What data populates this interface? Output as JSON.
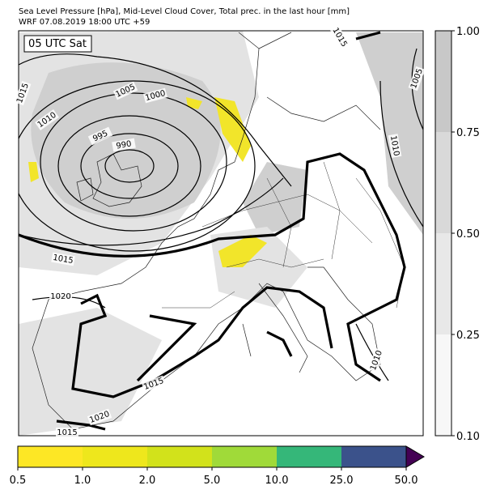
{
  "title": [
    "Sea Level Pressure [hPa], Mid-Level Cloud Cover, Total prec. in the last hour [mm]",
    "WRF 07.08.2019 18:00 UTC +59"
  ],
  "time_label": "05 UTC Sat",
  "contour_labels": [
    "1015",
    "1005",
    "1000",
    "995",
    "990",
    "1010",
    "1015",
    "1015",
    "1020",
    "1005",
    "1010",
    "1015",
    "1020",
    "1015",
    "1010"
  ],
  "cloud_colorbar": {
    "ticks": [
      "0.10",
      "0.25",
      "0.50",
      "0.75",
      "1.00"
    ],
    "colors": [
      "#f7f7f7",
      "#e8e8e8",
      "#d9d9d9",
      "#c8c8c8"
    ]
  },
  "precip_colorbar": {
    "ticks": [
      "0.5",
      "1.0",
      "2.0",
      "5.0",
      "10.0",
      "25.0",
      "50.0"
    ],
    "colors": [
      "#fde725",
      "#eee71c",
      "#d2e21b",
      "#a0da39",
      "#35b779",
      "#3b528b"
    ],
    "extend_color": "#440154"
  }
}
